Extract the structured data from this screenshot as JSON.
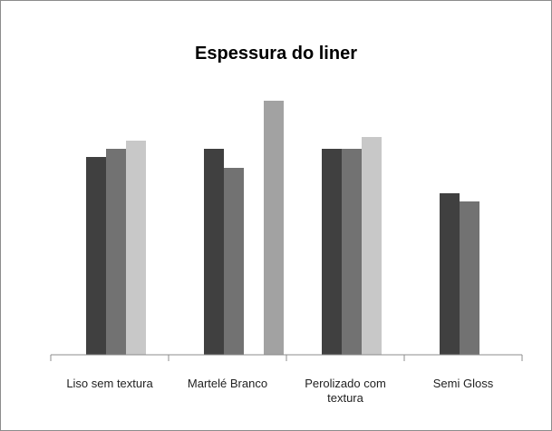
{
  "chart_data": {
    "type": "bar",
    "title": "Espessura do liner",
    "categories": [
      "Liso sem textura",
      "Martelé Branco",
      "Perolizado com textura",
      "Semi Gloss"
    ],
    "series": [
      {
        "color": "#404040",
        "values": [
          218,
          227,
          227,
          178
        ]
      },
      {
        "color": "#727272",
        "values": [
          227,
          206,
          227,
          169
        ]
      },
      {
        "color": "#c8c8c8",
        "values": [
          236,
          null,
          240,
          null
        ]
      },
      {
        "color": "#a2a2a2",
        "values": [
          null,
          280,
          null,
          null
        ]
      }
    ]
  }
}
